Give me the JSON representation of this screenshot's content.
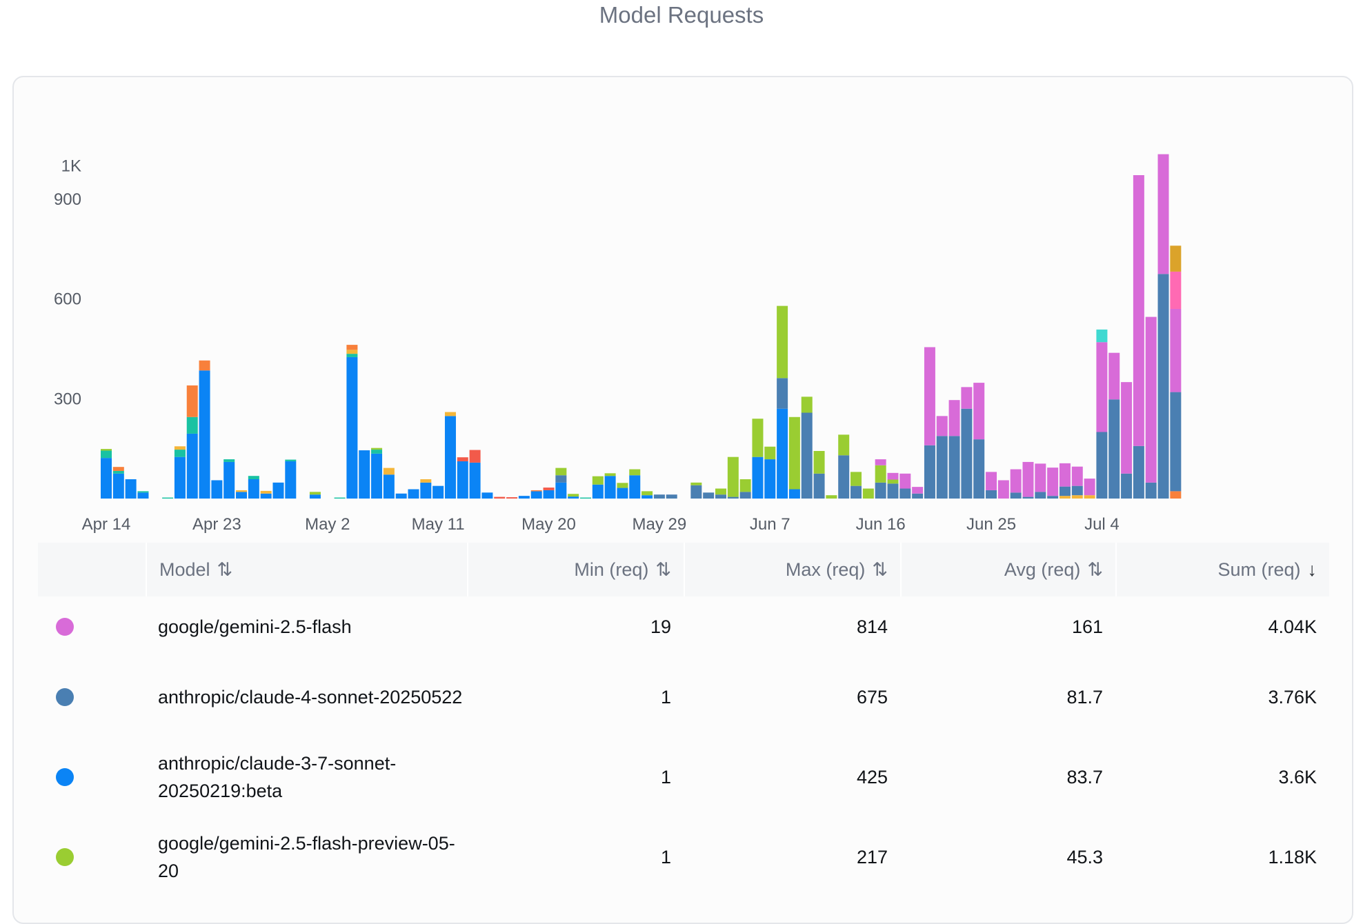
{
  "page_title": "Model Requests",
  "colors": {
    "gemini_flash": "#d86bd8",
    "claude4_sonnet": "#4a7fb2",
    "claude37_sonnet": "#0b84f5",
    "gemini_flash_preview": "#9acd32",
    "teal": "#19c2a2",
    "orange": "#f8803b",
    "yellow": "#f4b63a",
    "red": "#f25a4a",
    "pink": "#ff6ab3",
    "gold": "#dba32a",
    "cyan": "#3fd9d1"
  },
  "chart_data": {
    "type": "bar",
    "stacked": true,
    "ylim": [
      0,
      1000
    ],
    "yticks": [
      {
        "value": 300,
        "label": "300"
      },
      {
        "value": 600,
        "label": "600"
      },
      {
        "value": 900,
        "label": "900"
      },
      {
        "value": 1000,
        "label": "1K"
      }
    ],
    "xticks": [
      {
        "day": 0,
        "label": "Apr 14"
      },
      {
        "day": 9,
        "label": "Apr 23"
      },
      {
        "day": 18,
        "label": "May 2"
      },
      {
        "day": 27,
        "label": "May 11"
      },
      {
        "day": 36,
        "label": "May 20"
      },
      {
        "day": 45,
        "label": "May 29"
      },
      {
        "day": 54,
        "label": "Jun 7"
      },
      {
        "day": 63,
        "label": "Jun 16"
      },
      {
        "day": 72,
        "label": "Jun 25"
      },
      {
        "day": 81,
        "label": "Jul 4"
      }
    ],
    "grid": false,
    "bars": [
      [
        [
          122,
          "claude37_sonnet"
        ],
        [
          22,
          "teal"
        ],
        [
          5,
          "gemini_flash_preview"
        ]
      ],
      [
        [
          75,
          "claude37_sonnet"
        ],
        [
          8,
          "teal"
        ],
        [
          12,
          "orange"
        ]
      ],
      [
        [
          58,
          "claude37_sonnet"
        ]
      ],
      [
        [
          18,
          "claude37_sonnet"
        ],
        [
          4,
          "teal"
        ]
      ],
      [],
      [
        [
          3,
          "teal"
        ]
      ],
      [
        [
          125,
          "claude37_sonnet"
        ],
        [
          22,
          "teal"
        ],
        [
          10,
          "yellow"
        ]
      ],
      [
        [
          195,
          "claude37_sonnet"
        ],
        [
          50,
          "teal"
        ],
        [
          95,
          "orange"
        ]
      ],
      [
        [
          385,
          "claude37_sonnet"
        ],
        [
          30,
          "orange"
        ]
      ],
      [
        [
          55,
          "claude37_sonnet"
        ]
      ],
      [
        [
          110,
          "claude37_sonnet"
        ],
        [
          8,
          "teal"
        ]
      ],
      [
        [
          20,
          "claude37_sonnet"
        ],
        [
          5,
          "yellow"
        ]
      ],
      [
        [
          58,
          "claude37_sonnet"
        ],
        [
          10,
          "teal"
        ]
      ],
      [
        [
          15,
          "claude37_sonnet"
        ],
        [
          8,
          "yellow"
        ]
      ],
      [
        [
          48,
          "claude37_sonnet"
        ]
      ],
      [
        [
          112,
          "claude37_sonnet"
        ],
        [
          5,
          "teal"
        ]
      ],
      [],
      [
        [
          12,
          "claude37_sonnet"
        ],
        [
          8,
          "gemini_flash_preview"
        ]
      ],
      [],
      [
        [
          3,
          "teal"
        ]
      ],
      [
        [
          425,
          "claude37_sonnet"
        ],
        [
          10,
          "teal"
        ],
        [
          12,
          "yellow"
        ],
        [
          15,
          "orange"
        ]
      ],
      [
        [
          145,
          "claude37_sonnet"
        ]
      ],
      [
        [
          135,
          "claude37_sonnet"
        ],
        [
          12,
          "teal"
        ],
        [
          5,
          "gemini_flash_preview"
        ]
      ],
      [
        [
          72,
          "claude37_sonnet"
        ],
        [
          20,
          "yellow"
        ]
      ],
      [
        [
          15,
          "claude37_sonnet"
        ]
      ],
      [
        [
          28,
          "claude37_sonnet"
        ]
      ],
      [
        [
          48,
          "claude37_sonnet"
        ],
        [
          10,
          "yellow"
        ]
      ],
      [
        [
          38,
          "claude37_sonnet"
        ]
      ],
      [
        [
          248,
          "claude37_sonnet"
        ],
        [
          12,
          "yellow"
        ]
      ],
      [
        [
          112,
          "claude37_sonnet"
        ],
        [
          12,
          "red"
        ]
      ],
      [
        [
          108,
          "claude37_sonnet"
        ],
        [
          38,
          "red"
        ]
      ],
      [
        [
          18,
          "claude37_sonnet"
        ]
      ],
      [
        [
          5,
          "red"
        ]
      ],
      [
        [
          4,
          "red"
        ]
      ],
      [
        [
          8,
          "claude37_sonnet"
        ]
      ],
      [
        [
          22,
          "claude37_sonnet"
        ],
        [
          3,
          "orange"
        ]
      ],
      [
        [
          25,
          "claude37_sonnet"
        ],
        [
          8,
          "red"
        ]
      ],
      [
        [
          48,
          "claude37_sonnet"
        ],
        [
          22,
          "claude4_sonnet"
        ],
        [
          22,
          "gemini_flash_preview"
        ]
      ],
      [
        [
          6,
          "claude37_sonnet"
        ],
        [
          8,
          "gemini_flash_preview"
        ]
      ],
      [
        [
          3,
          "teal"
        ]
      ],
      [
        [
          42,
          "claude37_sonnet"
        ],
        [
          25,
          "gemini_flash_preview"
        ]
      ],
      [
        [
          68,
          "claude37_sonnet"
        ],
        [
          8,
          "gemini_flash_preview"
        ]
      ],
      [
        [
          32,
          "claude37_sonnet"
        ],
        [
          15,
          "gemini_flash_preview"
        ]
      ],
      [
        [
          70,
          "claude37_sonnet"
        ],
        [
          18,
          "gemini_flash_preview"
        ]
      ],
      [
        [
          10,
          "claude37_sonnet"
        ],
        [
          12,
          "gemini_flash_preview"
        ]
      ],
      [
        [
          12,
          "claude4_sonnet"
        ]
      ],
      [
        [
          12,
          "claude4_sonnet"
        ]
      ],
      [],
      [
        [
          40,
          "claude4_sonnet"
        ],
        [
          8,
          "gemini_flash_preview"
        ]
      ],
      [
        [
          18,
          "claude4_sonnet"
        ]
      ],
      [
        [
          12,
          "claude4_sonnet"
        ],
        [
          18,
          "gemini_flash_preview"
        ]
      ],
      [
        [
          5,
          "claude4_sonnet"
        ],
        [
          120,
          "gemini_flash_preview"
        ]
      ],
      [
        [
          20,
          "claude4_sonnet"
        ],
        [
          38,
          "gemini_flash_preview"
        ]
      ],
      [
        [
          125,
          "claude37_sonnet"
        ],
        [
          115,
          "gemini_flash_preview"
        ]
      ],
      [
        [
          118,
          "claude37_sonnet"
        ],
        [
          38,
          "gemini_flash_preview"
        ]
      ],
      [
        [
          270,
          "claude37_sonnet"
        ],
        [
          92,
          "claude4_sonnet"
        ],
        [
          217,
          "gemini_flash_preview"
        ]
      ],
      [
        [
          28,
          "claude37_sonnet"
        ],
        [
          217,
          "gemini_flash_preview"
        ]
      ],
      [
        [
          258,
          "claude4_sonnet"
        ],
        [
          48,
          "gemini_flash_preview"
        ]
      ],
      [
        [
          75,
          "claude4_sonnet"
        ],
        [
          68,
          "gemini_flash_preview"
        ]
      ],
      [
        [
          10,
          "gemini_flash_preview"
        ]
      ],
      [
        [
          130,
          "claude4_sonnet"
        ],
        [
          62,
          "gemini_flash_preview"
        ]
      ],
      [
        [
          38,
          "claude4_sonnet"
        ],
        [
          42,
          "gemini_flash_preview"
        ]
      ],
      [
        [
          30,
          "gemini_flash_preview"
        ]
      ],
      [
        [
          48,
          "claude4_sonnet"
        ],
        [
          52,
          "gemini_flash_preview"
        ],
        [
          18,
          "gemini_flash"
        ]
      ],
      [
        [
          45,
          "claude4_sonnet"
        ],
        [
          12,
          "gemini_flash_preview"
        ],
        [
          20,
          "gemini_flash"
        ]
      ],
      [
        [
          30,
          "claude4_sonnet"
        ],
        [
          45,
          "gemini_flash"
        ]
      ],
      [
        [
          15,
          "claude4_sonnet"
        ],
        [
          20,
          "gemini_flash"
        ]
      ],
      [
        [
          160,
          "claude4_sonnet"
        ],
        [
          295,
          "gemini_flash"
        ]
      ],
      [
        [
          188,
          "claude4_sonnet"
        ],
        [
          60,
          "gemini_flash"
        ]
      ],
      [
        [
          188,
          "claude4_sonnet"
        ],
        [
          108,
          "gemini_flash"
        ]
      ],
      [
        [
          270,
          "claude4_sonnet"
        ],
        [
          65,
          "gemini_flash"
        ]
      ],
      [
        [
          178,
          "claude4_sonnet"
        ],
        [
          170,
          "gemini_flash"
        ]
      ],
      [
        [
          25,
          "claude4_sonnet"
        ],
        [
          55,
          "gemini_flash"
        ]
      ],
      [
        [
          55,
          "gemini_flash"
        ]
      ],
      [
        [
          18,
          "claude4_sonnet"
        ],
        [
          70,
          "gemini_flash"
        ]
      ],
      [
        [
          5,
          "claude4_sonnet"
        ],
        [
          105,
          "gemini_flash"
        ]
      ],
      [
        [
          20,
          "claude4_sonnet"
        ],
        [
          85,
          "gemini_flash"
        ]
      ],
      [
        [
          8,
          "claude4_sonnet"
        ],
        [
          85,
          "gemini_flash"
        ]
      ],
      [
        [
          8,
          "yellow"
        ],
        [
          28,
          "claude4_sonnet"
        ],
        [
          70,
          "gemini_flash"
        ]
      ],
      [
        [
          10,
          "yellow"
        ],
        [
          28,
          "claude4_sonnet"
        ],
        [
          58,
          "gemini_flash"
        ]
      ],
      [
        [
          10,
          "yellow"
        ],
        [
          50,
          "gemini_flash"
        ]
      ],
      [
        [
          200,
          "claude4_sonnet"
        ],
        [
          270,
          "gemini_flash"
        ],
        [
          38,
          "cyan"
        ]
      ],
      [
        [
          298,
          "claude4_sonnet"
        ],
        [
          140,
          "gemini_flash"
        ]
      ],
      [
        [
          75,
          "claude4_sonnet"
        ],
        [
          275,
          "gemini_flash"
        ]
      ],
      [
        [
          158,
          "claude4_sonnet"
        ],
        [
          814,
          "gemini_flash"
        ]
      ],
      [
        [
          48,
          "claude4_sonnet"
        ],
        [
          498,
          "gemini_flash"
        ]
      ],
      [
        [
          675,
          "claude4_sonnet"
        ],
        [
          360,
          "gemini_flash"
        ]
      ],
      [
        [
          22,
          "orange"
        ],
        [
          298,
          "claude4_sonnet"
        ],
        [
          250,
          "gemini_flash"
        ],
        [
          112,
          "pink"
        ],
        [
          78,
          "gold"
        ]
      ]
    ]
  },
  "table": {
    "columns": {
      "model": "Model",
      "min": "Min (req)",
      "max": "Max (req)",
      "avg": "Avg (req)",
      "sum": "Sum (req)"
    },
    "sort_icons": {
      "neutral": "⇅",
      "desc": "↓"
    },
    "rows": [
      {
        "color": "#d86bd8",
        "model": "google/gemini-2.5-flash",
        "min": "19",
        "max": "814",
        "avg": "161",
        "sum": "4.04K"
      },
      {
        "color": "#4a7fb2",
        "model": "anthropic/claude-4-sonnet-20250522",
        "min": "1",
        "max": "675",
        "avg": "81.7",
        "sum": "3.76K"
      },
      {
        "color": "#0b84f5",
        "model": "anthropic/claude-3-7-sonnet-20250219:beta",
        "min": "1",
        "max": "425",
        "avg": "83.7",
        "sum": "3.6K"
      },
      {
        "color": "#9acd32",
        "model": "google/gemini-2.5-flash-preview-05-20",
        "min": "1",
        "max": "217",
        "avg": "45.3",
        "sum": "1.18K"
      }
    ]
  }
}
